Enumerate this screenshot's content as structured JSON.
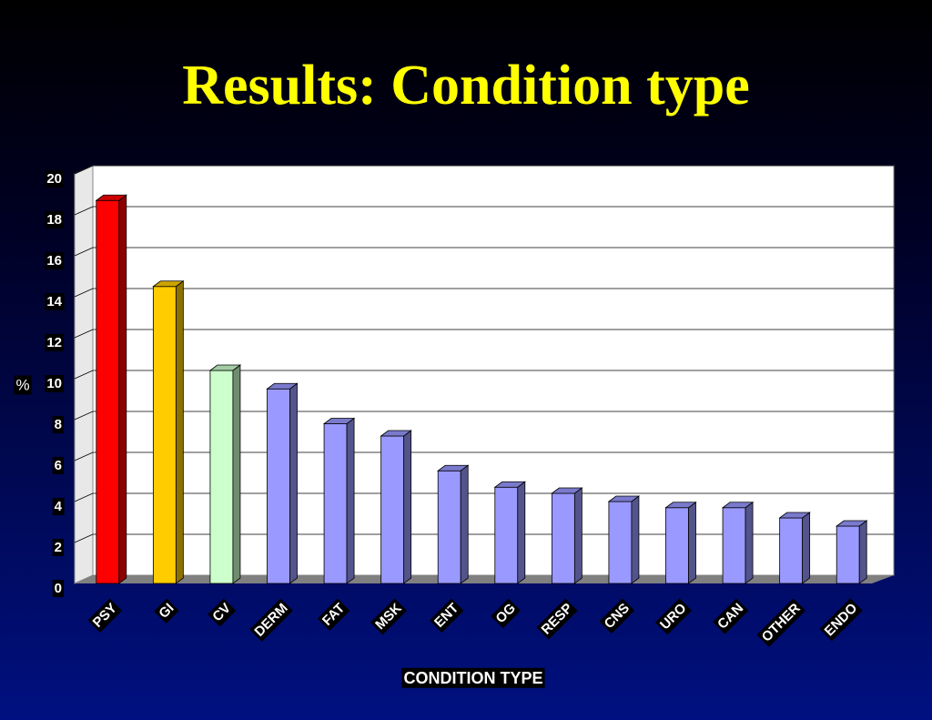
{
  "chart_data": {
    "type": "bar",
    "title": "Results: Condition type",
    "x_label": "CONDITION TYPE",
    "y_label": "%",
    "categories": [
      "PSY",
      "GI",
      "CV",
      "DERM",
      "FAT",
      "MSK",
      "ENT",
      "OG",
      "RESP",
      "CNS",
      "URO",
      "CAN",
      "OTHER",
      "ENDO"
    ],
    "values": [
      18.7,
      14.5,
      10.4,
      9.5,
      7.8,
      7.2,
      5.5,
      4.7,
      4.4,
      4.0,
      3.7,
      3.7,
      3.2,
      2.8
    ],
    "colors": [
      "#ff0000",
      "#ffcc00",
      "#ccffcc",
      "#9999ff",
      "#9999ff",
      "#9999ff",
      "#9999ff",
      "#9999ff",
      "#9999ff",
      "#9999ff",
      "#9999ff",
      "#9999ff",
      "#9999ff",
      "#9999ff"
    ],
    "ylim": [
      0,
      20
    ],
    "yticks": [
      0,
      2,
      4,
      6,
      8,
      10,
      12,
      14,
      16,
      18,
      20
    ],
    "grid": true
  }
}
